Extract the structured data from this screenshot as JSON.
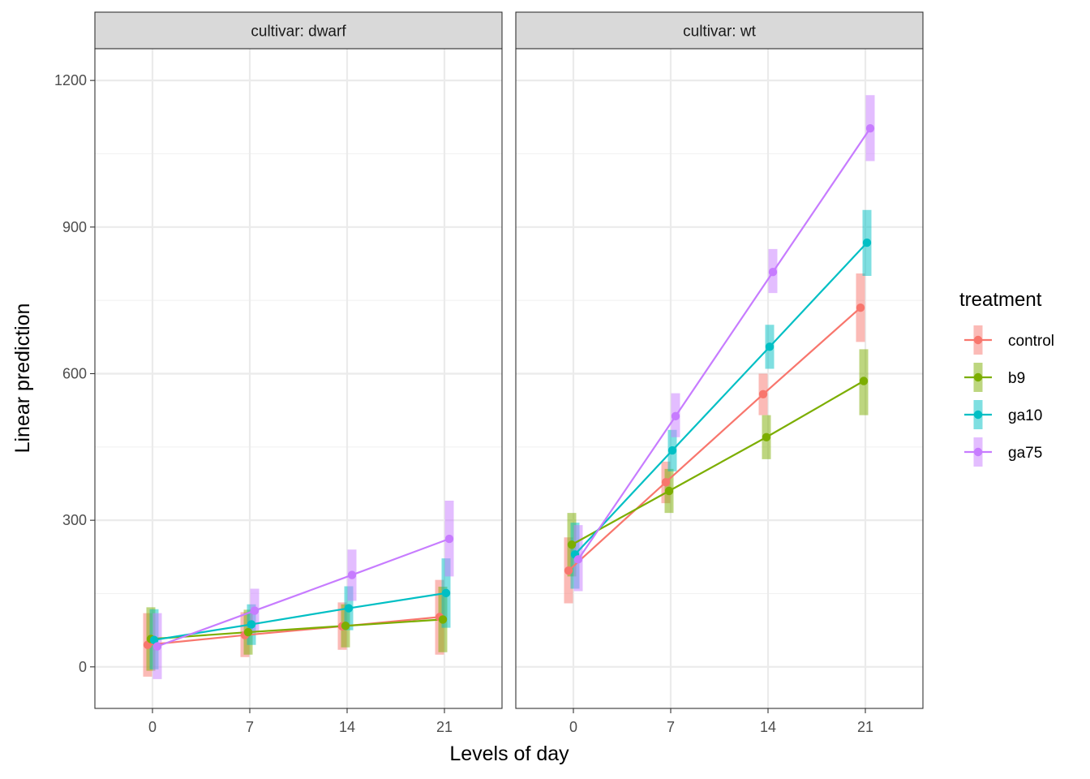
{
  "chart_data": {
    "type": "line",
    "ylabel": "Linear prediction",
    "xlabel": "Levels of day",
    "x": [
      0,
      7,
      14,
      21
    ],
    "x_tick_labels": [
      "0",
      "7",
      "14",
      "21"
    ],
    "y_ticks": [
      0,
      300,
      600,
      900,
      1200
    ],
    "y_tick_labels": [
      "0",
      "300",
      "600",
      "900",
      "1200"
    ],
    "ylim": [
      -85,
      1265
    ],
    "grid": true,
    "legend": {
      "title": "treatment",
      "position": "right"
    },
    "colors": {
      "control": "#F8766D",
      "b9": "#7CAE00",
      "ga10": "#00BFC4",
      "ga75": "#C77CFF"
    },
    "panels": [
      {
        "title": "cultivar: dwarf",
        "series": [
          {
            "name": "control",
            "values": [
              45,
              65,
              83,
              102
            ],
            "lower": [
              -20,
              20,
              35,
              25
            ],
            "upper": [
              110,
              112,
              132,
              178
            ]
          },
          {
            "name": "b9",
            "values": [
              57,
              71,
              84,
              97
            ],
            "lower": [
              -8,
              25,
              40,
              30
            ],
            "upper": [
              122,
              117,
              128,
              164
            ]
          },
          {
            "name": "ga10",
            "values": [
              55,
              87,
              120,
              151
            ],
            "lower": [
              -5,
              45,
              75,
              80
            ],
            "upper": [
              118,
              128,
              165,
              222
            ]
          },
          {
            "name": "ga75",
            "values": [
              42,
              115,
              188,
              262
            ],
            "lower": [
              -25,
              70,
              135,
              185
            ],
            "upper": [
              110,
              160,
              240,
              340
            ]
          }
        ]
      },
      {
        "title": "cultivar: wt",
        "series": [
          {
            "name": "control",
            "values": [
              197,
              378,
              558,
              735
            ],
            "lower": [
              130,
              335,
              515,
              665
            ],
            "upper": [
              265,
              420,
              600,
              805
            ]
          },
          {
            "name": "b9",
            "values": [
              250,
              360,
              470,
              585
            ],
            "lower": [
              185,
              315,
              425,
              515
            ],
            "upper": [
              315,
              405,
              515,
              650
            ]
          },
          {
            "name": "ga10",
            "values": [
              230,
              443,
              655,
              868
            ],
            "lower": [
              160,
              400,
              610,
              800
            ],
            "upper": [
              295,
              485,
              700,
              935
            ]
          },
          {
            "name": "ga75",
            "values": [
              220,
              513,
              808,
              1102
            ],
            "lower": [
              155,
              470,
              765,
              1035
            ],
            "upper": [
              290,
              560,
              855,
              1170
            ]
          }
        ]
      }
    ]
  }
}
